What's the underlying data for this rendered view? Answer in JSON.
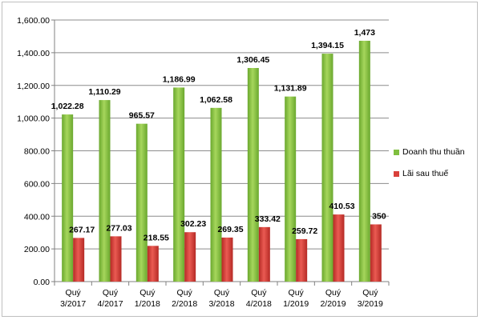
{
  "chart_data": {
    "type": "bar",
    "title": "",
    "xlabel": "",
    "ylabel": "",
    "ylim": [
      0,
      1600
    ],
    "yticks": [
      "0.00",
      "200.00",
      "400.00",
      "600.00",
      "800.00",
      "1,000.00",
      "1,200.00",
      "1,400.00",
      "1,600.00"
    ],
    "grid": true,
    "legend_position": "right",
    "categories": [
      [
        "Quý",
        "3/2017"
      ],
      [
        "Quý",
        "4/2017"
      ],
      [
        "Quý",
        "1/2018"
      ],
      [
        "Quý",
        "2/2018"
      ],
      [
        "Quý",
        "3/2018"
      ],
      [
        "Quý",
        "4/2018"
      ],
      [
        "Quý",
        "1/2019"
      ],
      [
        "Quý",
        "2/2019"
      ],
      [
        "Quý",
        "3/2019"
      ]
    ],
    "series": [
      {
        "name": "Doanh thu thuần",
        "color": "#7fbf3f",
        "values": [
          1022.28,
          1110.29,
          965.57,
          1186.99,
          1062.58,
          1306.45,
          1131.89,
          1394.15,
          1473
        ],
        "labels": [
          "1,022.28",
          "1,110.29",
          "965.57",
          "1,186.99",
          "1,062.58",
          "1,306.45",
          "1,131.89",
          "1,394.15",
          "1,473"
        ]
      },
      {
        "name": "Lãi sau thuế",
        "color": "#d9403a",
        "values": [
          267.17,
          277.03,
          218.55,
          302.23,
          269.35,
          333.42,
          259.72,
          410.53,
          350
        ],
        "labels": [
          "267.17",
          "277.03",
          "218.55",
          "302.23",
          "269.35",
          "333.42",
          "259.72",
          "410.53",
          "350"
        ]
      }
    ]
  }
}
